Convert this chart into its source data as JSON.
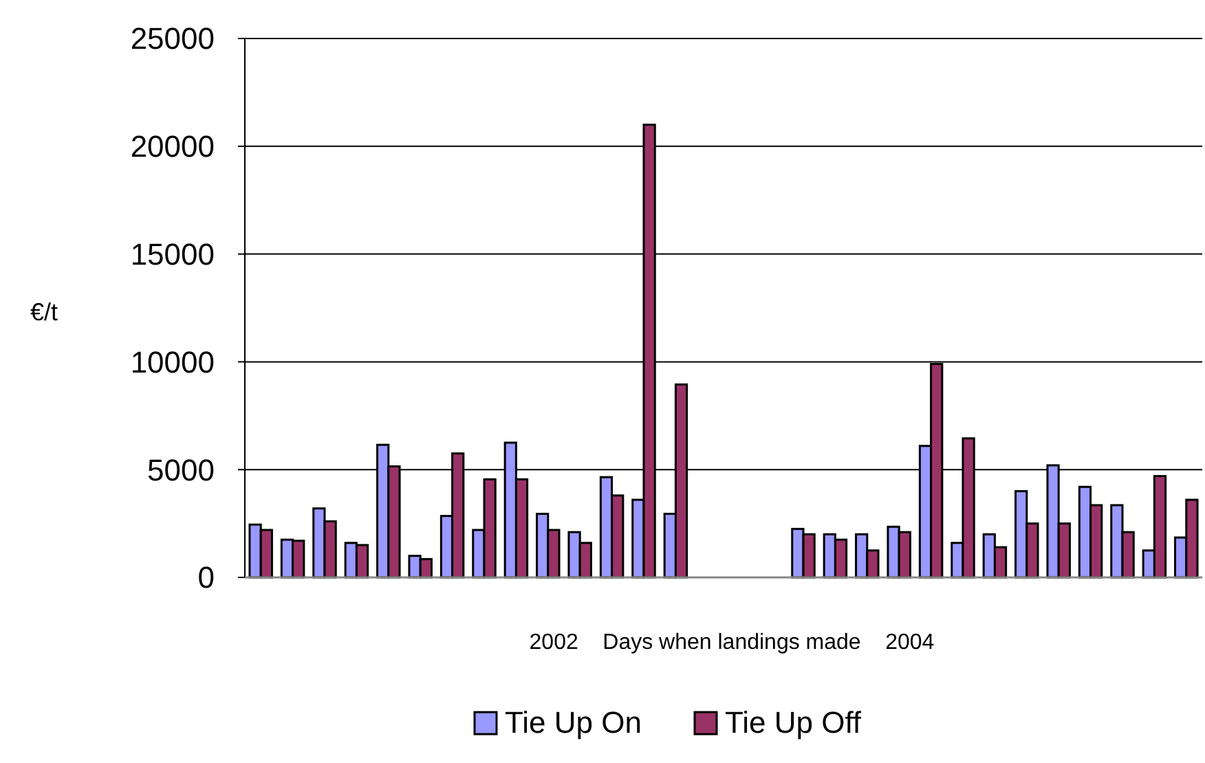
{
  "chart_data": {
    "type": "bar",
    "ylabel": "€/t",
    "xlabel": "2002    Days when landings made    2004",
    "categories": [
      null,
      null,
      null,
      null,
      null,
      null,
      null,
      null,
      null,
      null,
      null,
      null,
      null,
      null,
      null,
      null,
      null,
      null,
      null,
      null,
      null,
      null,
      null,
      null,
      null,
      null,
      null,
      null,
      null,
      null
    ],
    "series": [
      {
        "name": "Tie Up On",
        "color": "#9999ff",
        "values": [
          2450,
          1750,
          3200,
          1600,
          6150,
          1000,
          2850,
          2200,
          6250,
          2950,
          2100,
          4650,
          3600,
          2950,
          null,
          null,
          null,
          2250,
          2000,
          2000,
          2350,
          6100,
          1600,
          2000,
          4000,
          5200,
          4200,
          3350,
          1250,
          1850
        ]
      },
      {
        "name": "Tie Up Off",
        "color": "#993366",
        "values": [
          2200,
          1700,
          2600,
          1500,
          5150,
          850,
          5750,
          4550,
          4550,
          2200,
          1600,
          3800,
          21000,
          8950,
          null,
          null,
          null,
          2000,
          1750,
          1250,
          2100,
          9900,
          6450,
          1400,
          2500,
          2500,
          3350,
          2100,
          4700,
          3600
        ]
      }
    ],
    "ylim": [
      0,
      25000
    ],
    "yticks": [
      0,
      5000,
      10000,
      15000,
      20000,
      25000
    ],
    "grid": "y",
    "legend": "bottom"
  }
}
